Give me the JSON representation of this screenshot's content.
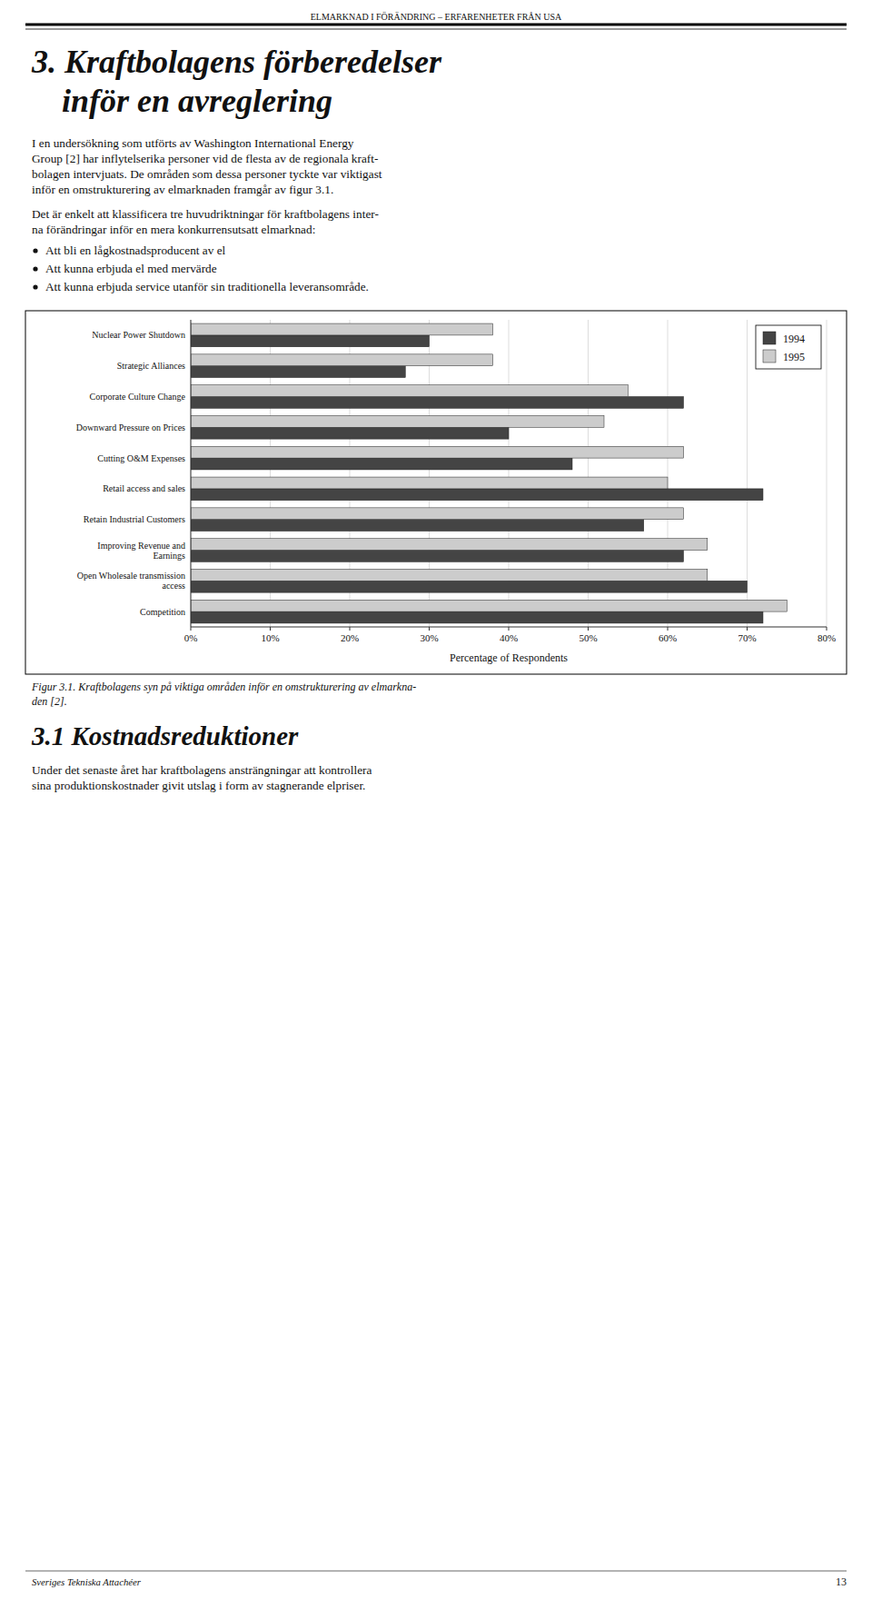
{
  "header": "ELMARKNAD I FÖRÄNDRING – ERFARENHETER FRÅN USA",
  "chapter_title": [
    "3. Kraftbolagens förberedelser",
    "inför en avreglering"
  ],
  "para1": [
    "I en undersökning som utförts av Washington International Energy",
    "Group [2] har inflytelserika personer vid de flesta av de regionala kraft-",
    "bolagen intervjuats. De områden som dessa personer tyckte var viktigast",
    "inför en omstrukturering av elmarknaden framgår av figur 3.1."
  ],
  "para2": [
    "Det är enkelt att klassificera tre huvudriktningar för kraftbolagens inter-",
    "na förändringar inför en mera konkurrensutsatt elmarknad:"
  ],
  "bullets": [
    "Att bli en lågkostnadsproducent av el",
    "Att kunna erbjuda el med mervärde",
    "Att kunna erbjuda service utanför sin traditionella leveransområde."
  ],
  "figure_caption": [
    "Figur 3.1. Kraftbolagens syn på viktiga områden inför en omstrukturering av elmarkna-",
    "den [2]."
  ],
  "section_title": "3.1 Kostnadsreduktioner",
  "para3": [
    "Under det senaste året har kraftbolagens ansträngningar att kontrollera",
    "sina produktionskostnader givit utslag i form av stagnerande elpriser."
  ],
  "footer_left": "Sveriges Tekniska Attachéer",
  "footer_right": "13",
  "chart_data": {
    "type": "bar",
    "orientation": "horizontal",
    "categories": [
      "Nuclear Power Shutdown",
      "Strategic Alliances",
      "Corporate Culture Change",
      "Downward Pressure on Prices",
      "Cutting O&M Expenses",
      "Retail access and sales",
      "Retain Industrial Customers",
      "Improving Revenue and\nEarnings",
      "Open Wholesale transmission\naccess",
      "Competition"
    ],
    "series": [
      {
        "name": "1994",
        "color": "#444444",
        "values": [
          30,
          27,
          62,
          40,
          48,
          72,
          57,
          62,
          70,
          72
        ]
      },
      {
        "name": "1995",
        "color": "#cccccc",
        "values": [
          38,
          38,
          55,
          52,
          62,
          60,
          62,
          65,
          65,
          75
        ]
      }
    ],
    "x_label": "Percentage of Respondents",
    "xlim": [
      0,
      80
    ],
    "xticks": [
      {
        "value": 0,
        "label": "0%"
      },
      {
        "value": 10,
        "label": "10%"
      },
      {
        "value": 20,
        "label": "20%"
      },
      {
        "value": 30,
        "label": "30%"
      },
      {
        "value": 40,
        "label": "40%"
      },
      {
        "value": 50,
        "label": "50%"
      },
      {
        "value": 60,
        "label": "60%"
      },
      {
        "value": 70,
        "label": "70%"
      },
      {
        "value": 80,
        "label": "80%"
      }
    ],
    "grid": true,
    "legend": "top-right"
  }
}
